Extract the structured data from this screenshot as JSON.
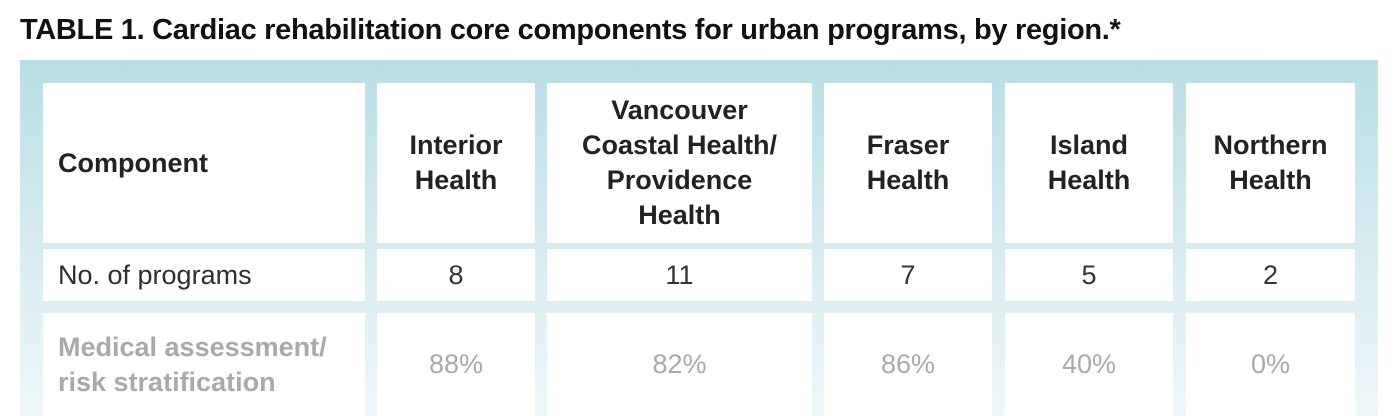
{
  "caption": {
    "label": "TABLE 1.",
    "title": "Cardiac rehabilitation core components for urban programs, by region.*"
  },
  "table": {
    "headers": [
      "Component",
      "Interior Health",
      "Vancouver Coastal Health/ Providence Health",
      "Fraser Health",
      "Island Health",
      "Northern Health"
    ],
    "rows": [
      {
        "label": "No. of programs",
        "values": [
          "8",
          "11",
          "7",
          "5",
          "2"
        ]
      },
      {
        "label": "Medical assessment/ risk stratification",
        "values": [
          "88%",
          "82%",
          "86%",
          "40%",
          "0%"
        ]
      }
    ]
  },
  "colors": {
    "panel_top": "#b9dde6",
    "panel_bottom": "#eef7f9",
    "faded_text": "#a9a9a9"
  }
}
